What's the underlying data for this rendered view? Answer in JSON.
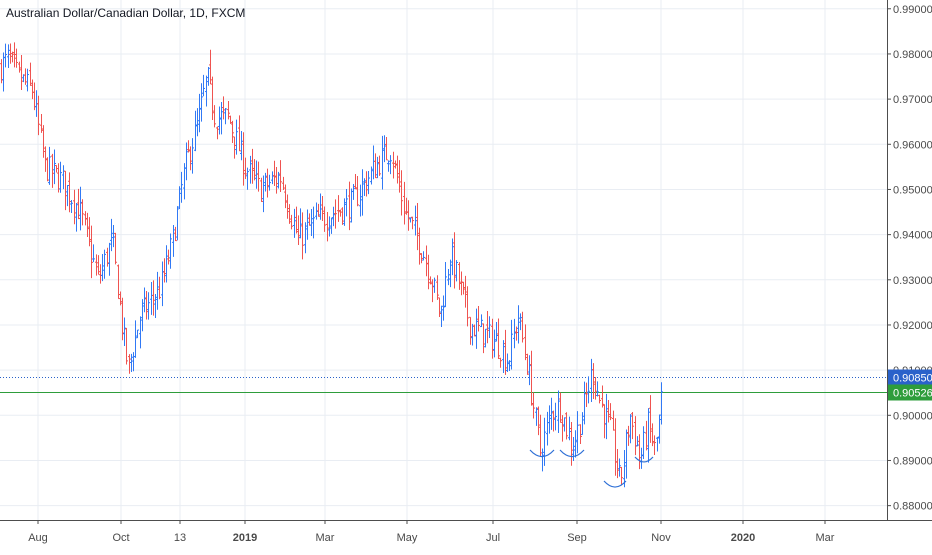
{
  "header": {
    "title": "Australian Dollar/Canadian Dollar, 1D, FXCM"
  },
  "colors": {
    "up": "#3179f5",
    "down": "#ef5350",
    "grid": "#e9edf3",
    "axis_text": "#4a4a4a",
    "axis_line": "#4d4d4d",
    "level_blue": "#2a62ca",
    "level_green": "#2e9d3b",
    "pattern_blue": "#2d6fd6"
  },
  "chart_data": {
    "type": "candlestick",
    "title": "Australian Dollar/Canadian Dollar, 1D, FXCM",
    "ylim": [
      0.8735,
      0.9915
    ],
    "y_ticks": [
      "0.99000",
      "0.98000",
      "0.97000",
      "0.96000",
      "0.95000",
      "0.94000",
      "0.93000",
      "0.92000",
      "0.91000",
      "0.90000",
      "0.89000",
      "0.88000"
    ],
    "x_ticks": [
      "Aug",
      "Oct",
      "13",
      "2019",
      "Mar",
      "May",
      "Jul",
      "Sep",
      "Nov",
      "2020",
      "Mar"
    ],
    "grid": true,
    "price_lines": [
      {
        "label": "0.90850",
        "value": 0.9085,
        "style": "dotted",
        "color_key": "level_blue"
      },
      {
        "label": "0.90526",
        "value": 0.90526,
        "style": "solid",
        "color_key": "level_green"
      }
    ],
    "annotations": [
      {
        "type": "arc",
        "date_index": 18
      },
      {
        "type": "arc",
        "date_index": 19
      },
      {
        "type": "arc",
        "date_index": 20
      },
      {
        "type": "arc",
        "date_index": 21
      }
    ],
    "price_path": [
      [
        0,
        0.977
      ],
      [
        8,
        0.979
      ],
      [
        18,
        0.975
      ],
      [
        32,
        0.972
      ],
      [
        45,
        0.955
      ],
      [
        62,
        0.952
      ],
      [
        80,
        0.945
      ],
      [
        98,
        0.93
      ],
      [
        112,
        0.939
      ],
      [
        122,
        0.92
      ],
      [
        128,
        0.91
      ],
      [
        140,
        0.922
      ],
      [
        160,
        0.928
      ],
      [
        172,
        0.938
      ],
      [
        185,
        0.955
      ],
      [
        198,
        0.965
      ],
      [
        207,
        0.975
      ],
      [
        215,
        0.966
      ],
      [
        228,
        0.966
      ],
      [
        245,
        0.955
      ],
      [
        260,
        0.95
      ],
      [
        280,
        0.953
      ],
      [
        298,
        0.939
      ],
      [
        315,
        0.943
      ],
      [
        335,
        0.945
      ],
      [
        352,
        0.947
      ],
      [
        372,
        0.954
      ],
      [
        390,
        0.959
      ],
      [
        405,
        0.945
      ],
      [
        420,
        0.938
      ],
      [
        432,
        0.93
      ],
      [
        440,
        0.922
      ],
      [
        450,
        0.936
      ],
      [
        458,
        0.93
      ],
      [
        470,
        0.92
      ],
      [
        485,
        0.918
      ],
      [
        498,
        0.916
      ],
      [
        508,
        0.912
      ],
      [
        518,
        0.922
      ],
      [
        528,
        0.91
      ],
      [
        540,
        0.892
      ],
      [
        552,
        0.901
      ],
      [
        560,
        0.902
      ],
      [
        572,
        0.893
      ],
      [
        582,
        0.9
      ],
      [
        592,
        0.91
      ],
      [
        600,
        0.903
      ],
      [
        610,
        0.897
      ],
      [
        620,
        0.885
      ],
      [
        630,
        0.9
      ],
      [
        640,
        0.89
      ],
      [
        648,
        0.898
      ],
      [
        655,
        0.892
      ],
      [
        660,
        0.9
      ],
      [
        663,
        0.91
      ]
    ]
  }
}
